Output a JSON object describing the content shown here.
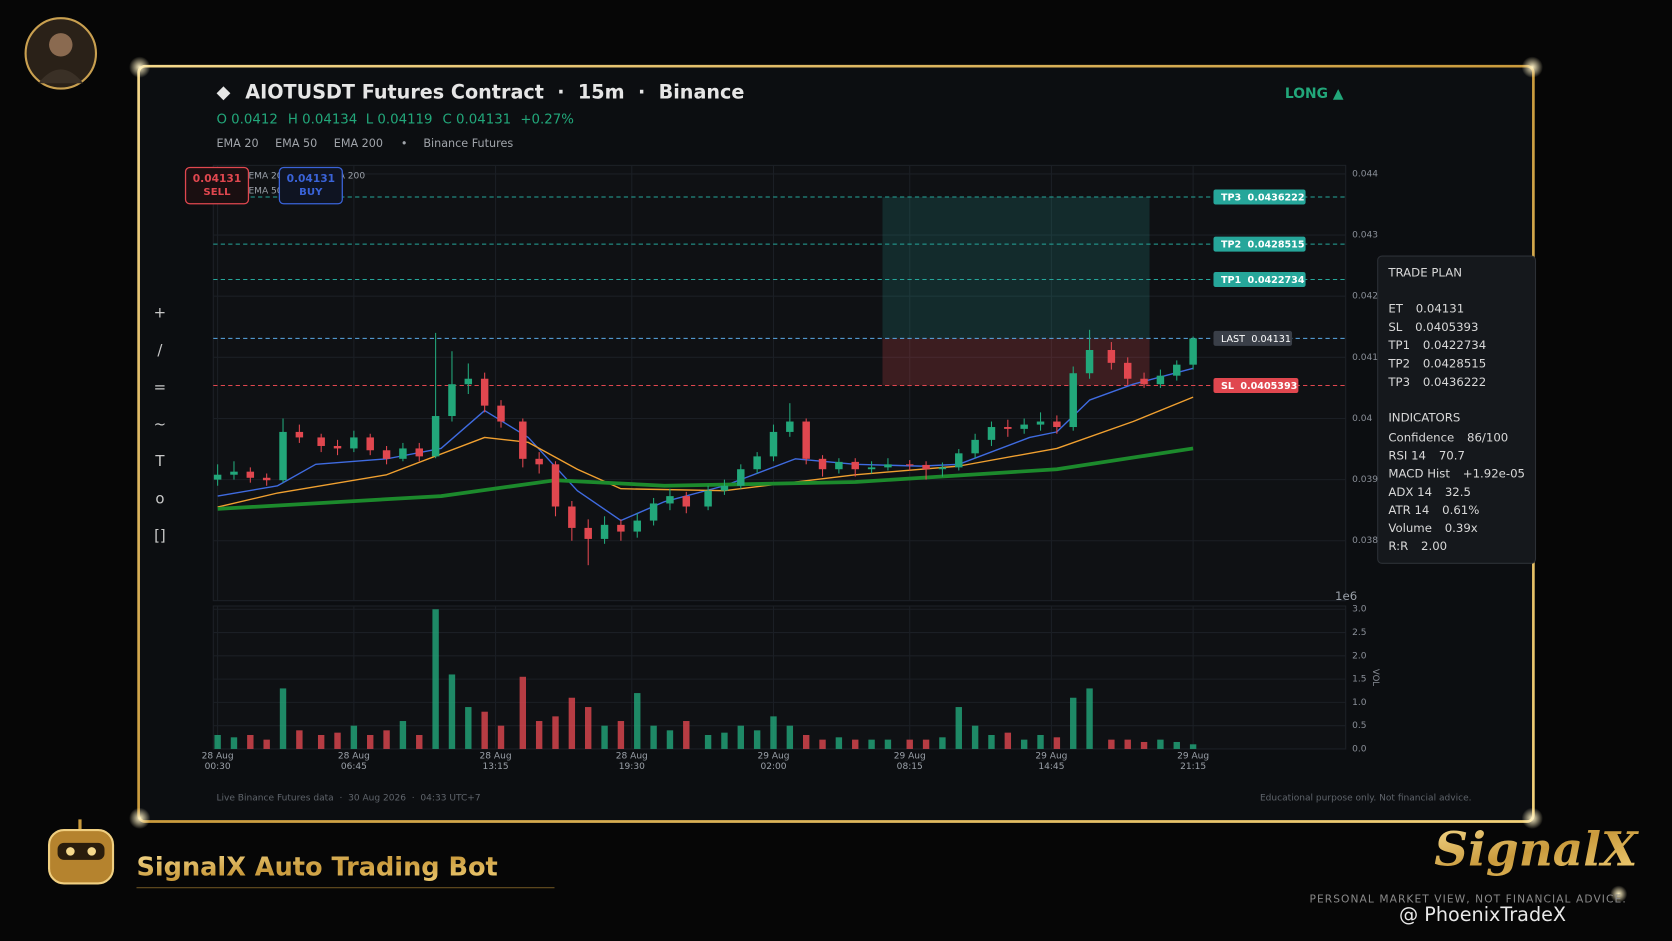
{
  "header": {
    "title": "AIOTUSDT Futures Contract  ·  15m  ·  Binance",
    "side": "LONG ▲",
    "ohlc": [
      "O 0.0412",
      "H 0.04134",
      "L 0.04119",
      "C 0.04131",
      "+0.27%"
    ],
    "indicators": [
      "EMA 20",
      "EMA 50",
      "EMA 200",
      "•",
      "Binance Futures"
    ]
  },
  "buttons": {
    "sell": {
      "price": "0.04131",
      "label": "SELL"
    },
    "buy": {
      "price": "0.04131",
      "label": "BUY"
    }
  },
  "toolbar": [
    "+",
    "/",
    "=",
    "~",
    "T",
    "o",
    "[]"
  ],
  "trade_plan": {
    "title": "TRADE PLAN",
    "rows": [
      [
        "ET",
        "0.04131"
      ],
      [
        "SL",
        "0.0405393"
      ],
      [
        "TP1",
        "0.0422734"
      ],
      [
        "TP2",
        "0.0428515"
      ],
      [
        "TP3",
        "0.0436222"
      ]
    ],
    "indicators_title": "INDICATORS",
    "indicators": [
      [
        "Confidence",
        "86/100"
      ],
      [
        "RSI 14",
        "70.7"
      ],
      [
        "MACD Hist",
        "+1.92e-05"
      ],
      [
        "ADX 14",
        "32.5"
      ],
      [
        "ATR 14",
        "0.61%"
      ],
      [
        "Volume",
        "0.39x"
      ],
      [
        "R:R",
        "2.00"
      ]
    ]
  },
  "footer": {
    "left": "Live Binance Futures data  ·  30 Aug 2026  ·  04:33 UTC+7",
    "right": "Educational purpose only. Not financial advice."
  },
  "branding": {
    "bot": "SignalX Auto Trading Bot",
    "logo": "SignalX",
    "tagline": "PERSONAL MARKET VIEW, NOT FINANCIAL ADVICE.",
    "watermark": "@ PhoenixTradeX"
  },
  "chart_data": {
    "type": "candlestick",
    "grid": true,
    "legend": "upper left",
    "up_color": "#22a77a",
    "down_color": "#e0474f",
    "xlim": [
      -0.8,
      207
    ],
    "ylim": [
      0.03702,
      0.04414
    ],
    "multiplier": "1e6",
    "yticks": [
      0.038,
      0.039,
      0.04,
      0.041,
      0.042,
      0.043,
      0.044
    ],
    "xticks": [
      {
        "value": 0,
        "label": [
          "28 Aug",
          "00:30"
        ]
      },
      {
        "value": 25,
        "label": [
          "28 Aug",
          "06:45"
        ]
      },
      {
        "value": 51,
        "label": [
          "28 Aug",
          "13:15"
        ]
      },
      {
        "value": 76,
        "label": [
          "28 Aug",
          "19:30"
        ]
      },
      {
        "value": 102,
        "label": [
          "29 Aug",
          "02:00"
        ]
      },
      {
        "value": 127,
        "label": [
          "29 Aug",
          "08:15"
        ]
      },
      {
        "value": 153,
        "label": [
          "29 Aug",
          "14:45"
        ]
      },
      {
        "value": 179,
        "label": [
          "29 Aug",
          "21:15"
        ]
      }
    ],
    "x": [
      0,
      3,
      6,
      9,
      12,
      15,
      19,
      22,
      25,
      28,
      31,
      34,
      37,
      40,
      43,
      46,
      49,
      52,
      56,
      59,
      62,
      65,
      68,
      71,
      74,
      77,
      80,
      83,
      86,
      90,
      93,
      96,
      99,
      102,
      105,
      108,
      111,
      114,
      117,
      120,
      123,
      127,
      130,
      133,
      136,
      139,
      142,
      145,
      148,
      151,
      154,
      157,
      160,
      164,
      167,
      170,
      173,
      176,
      179
    ],
    "candles": [
      [
        0.039,
        0.03925,
        0.0389,
        0.03908
      ],
      [
        0.03908,
        0.0393,
        0.039,
        0.03913
      ],
      [
        0.03913,
        0.0392,
        0.03895,
        0.03903
      ],
      [
        0.03903,
        0.0391,
        0.0389,
        0.03899
      ],
      [
        0.03899,
        0.04,
        0.03895,
        0.03978
      ],
      [
        0.03978,
        0.0399,
        0.0396,
        0.03969
      ],
      [
        0.03969,
        0.03975,
        0.03945,
        0.03955
      ],
      [
        0.03955,
        0.03965,
        0.0394,
        0.03951
      ],
      [
        0.03951,
        0.0398,
        0.03945,
        0.03969
      ],
      [
        0.03969,
        0.03975,
        0.0394,
        0.03948
      ],
      [
        0.03948,
        0.03955,
        0.03925,
        0.03934
      ],
      [
        0.03934,
        0.0396,
        0.0393,
        0.03951
      ],
      [
        0.03951,
        0.0396,
        0.0393,
        0.03938
      ],
      [
        0.03938,
        0.0414,
        0.03935,
        0.04004
      ],
      [
        0.04004,
        0.0411,
        0.03995,
        0.04056
      ],
      [
        0.04056,
        0.0409,
        0.0404,
        0.04065
      ],
      [
        0.04065,
        0.04075,
        0.0401,
        0.04021
      ],
      [
        0.04021,
        0.0403,
        0.03985,
        0.03995
      ],
      [
        0.03995,
        0.04,
        0.0392,
        0.03934
      ],
      [
        0.03934,
        0.03945,
        0.0391,
        0.03925
      ],
      [
        0.03925,
        0.0393,
        0.0384,
        0.03856
      ],
      [
        0.03856,
        0.03865,
        0.038,
        0.03821
      ],
      [
        0.03821,
        0.03835,
        0.0376,
        0.03803
      ],
      [
        0.03803,
        0.0384,
        0.03795,
        0.03826
      ],
      [
        0.03826,
        0.03835,
        0.038,
        0.03815
      ],
      [
        0.03815,
        0.03845,
        0.03805,
        0.03833
      ],
      [
        0.03833,
        0.0387,
        0.03825,
        0.03861
      ],
      [
        0.03861,
        0.03885,
        0.0385,
        0.03873
      ],
      [
        0.03873,
        0.0388,
        0.03845,
        0.03856
      ],
      [
        0.03856,
        0.0389,
        0.0385,
        0.03882
      ],
      [
        0.03882,
        0.039,
        0.03875,
        0.0389
      ],
      [
        0.0389,
        0.03925,
        0.03885,
        0.03917
      ],
      [
        0.03917,
        0.03945,
        0.0391,
        0.03938
      ],
      [
        0.03938,
        0.0399,
        0.0393,
        0.03978
      ],
      [
        0.03978,
        0.04025,
        0.0397,
        0.03995
      ],
      [
        0.03995,
        0.04,
        0.03925,
        0.03934
      ],
      [
        0.03934,
        0.0394,
        0.03905,
        0.03917
      ],
      [
        0.03917,
        0.03935,
        0.0391,
        0.03929
      ],
      [
        0.03929,
        0.03935,
        0.03905,
        0.03917
      ],
      [
        0.03917,
        0.0393,
        0.0391,
        0.0392
      ],
      [
        0.0392,
        0.03935,
        0.03915,
        0.03925
      ],
      [
        0.03925,
        0.03932,
        0.03915,
        0.03924
      ],
      [
        0.03924,
        0.0393,
        0.039,
        0.03917
      ],
      [
        0.03917,
        0.03928,
        0.03905,
        0.0392
      ],
      [
        0.0392,
        0.0395,
        0.03915,
        0.03943
      ],
      [
        0.03943,
        0.03975,
        0.03935,
        0.03965
      ],
      [
        0.03965,
        0.03995,
        0.03955,
        0.03986
      ],
      [
        0.03986,
        0.03998,
        0.0397,
        0.03983
      ],
      [
        0.03983,
        0.04,
        0.03975,
        0.0399
      ],
      [
        0.0399,
        0.0401,
        0.0398,
        0.03995
      ],
      [
        0.03995,
        0.04005,
        0.03975,
        0.03986
      ],
      [
        0.03986,
        0.04085,
        0.0398,
        0.04074
      ],
      [
        0.04074,
        0.04145,
        0.04065,
        0.04112
      ],
      [
        0.04112,
        0.04125,
        0.0408,
        0.04091
      ],
      [
        0.04091,
        0.041,
        0.04055,
        0.04065
      ],
      [
        0.04065,
        0.04075,
        0.0405,
        0.04056
      ],
      [
        0.04056,
        0.0408,
        0.0405,
        0.0407
      ],
      [
        0.0407,
        0.04095,
        0.04062,
        0.04088
      ],
      [
        0.04088,
        0.04134,
        0.0408,
        0.04131
      ]
    ],
    "volume": {
      "ylabel": "VOL",
      "ylim": [
        0,
        3.07
      ],
      "yticks": [
        {
          "value": 0,
          "label": "0.0"
        },
        0.5,
        {
          "value": 1,
          "label": "1.0"
        },
        1.5,
        {
          "value": 2,
          "label": "2.0"
        },
        2.5,
        {
          "value": 3,
          "label": "3.0"
        }
      ],
      "values": [
        0.3,
        0.25,
        0.3,
        0.2,
        1.3,
        0.4,
        0.3,
        0.35,
        0.5,
        0.3,
        0.4,
        0.6,
        0.3,
        3.0,
        1.6,
        0.9,
        0.8,
        0.5,
        1.55,
        0.6,
        0.7,
        1.1,
        0.9,
        0.5,
        0.6,
        1.2,
        0.5,
        0.4,
        0.6,
        0.3,
        0.35,
        0.5,
        0.4,
        0.7,
        0.5,
        0.3,
        0.2,
        0.25,
        0.2,
        0.2,
        0.2,
        0.2,
        0.2,
        0.25,
        0.9,
        0.5,
        0.3,
        0.35,
        0.2,
        0.3,
        0.25,
        1.1,
        1.3,
        0.2,
        0.2,
        0.15,
        0.2,
        0.15,
        0.1
      ]
    },
    "series": [
      {
        "name": "EMA 20",
        "color": "#3f6be0",
        "width": 1.3,
        "x": [
          0,
          11,
          18,
          31,
          41,
          49,
          57,
          66,
          74,
          82,
          93,
          106,
          117,
          129,
          136,
          149,
          154,
          160,
          168,
          179
        ],
        "values": [
          0.03873,
          0.0389,
          0.03925,
          0.03934,
          0.03951,
          0.04013,
          0.03969,
          0.03882,
          0.03833,
          0.03864,
          0.0389,
          0.03934,
          0.03925,
          0.03922,
          0.03925,
          0.03969,
          0.03978,
          0.0403,
          0.04056,
          0.04082
        ]
      },
      {
        "name": "EMA 50",
        "color": "#f0a030",
        "width": 1.3,
        "x": [
          0,
          11,
          31,
          49,
          57,
          66,
          74,
          93,
          117,
          136,
          154,
          168,
          179
        ],
        "values": [
          0.03855,
          0.03878,
          0.03908,
          0.03969,
          0.03961,
          0.03917,
          0.03885,
          0.03882,
          0.03908,
          0.03922,
          0.03951,
          0.03995,
          0.04035
        ]
      },
      {
        "name": "EMA 200",
        "color": "#1c8a2c",
        "width": 3.5,
        "x": [
          0,
          41,
          62,
          82,
          117,
          154,
          179
        ],
        "values": [
          0.03852,
          0.03873,
          0.03899,
          0.0389,
          0.03896,
          0.03917,
          0.03951
        ]
      }
    ],
    "levels": [
      {
        "name": "TP3",
        "value": 0.0436222,
        "color": "#26a69a"
      },
      {
        "name": "TP2",
        "value": 0.0428515,
        "color": "#26a69a"
      },
      {
        "name": "TP1",
        "value": 0.0422734,
        "color": "#26a69a"
      },
      {
        "name": "LAST",
        "value": 0.04131,
        "color": "#5aa9e6"
      },
      {
        "name": "SL",
        "value": 0.0405393,
        "color": "#e0474f"
      }
    ],
    "trade_zone": {
      "x": [
        122,
        171
      ]
    }
  }
}
